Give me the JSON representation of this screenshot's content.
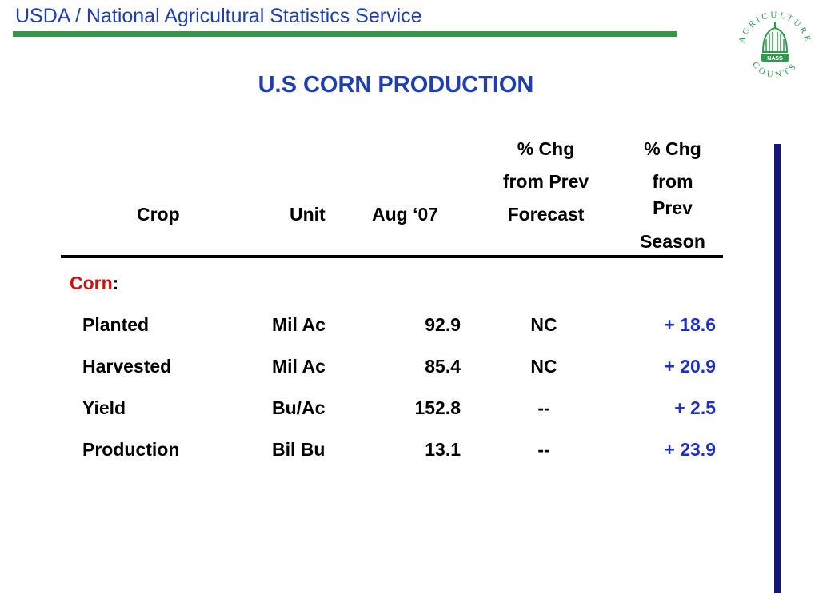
{
  "header": {
    "agency": "USDA / National Agricultural Statistics Service",
    "seal_text_top": "AGRICULTURE",
    "seal_text_bottom": "COUNTS",
    "seal_badge": "NASS"
  },
  "title": "U.S CORN PRODUCTION",
  "table": {
    "columns": {
      "crop": "Crop",
      "unit": "Unit",
      "aug07": "Aug ‘07",
      "chg_forecast": [
        "% Chg",
        "from Prev",
        "Forecast"
      ],
      "chg_season": [
        "% Chg",
        "from",
        "Prev",
        "Season"
      ]
    },
    "group": {
      "label": "Corn",
      "colon": ":"
    },
    "rows": [
      {
        "crop": "Planted",
        "unit": "Mil Ac",
        "aug07": "92.9",
        "chg_forecast": "NC",
        "chg_season": "+ 18.6"
      },
      {
        "crop": "Harvested",
        "unit": "Mil Ac",
        "aug07": "85.4",
        "chg_forecast": "NC",
        "chg_season": "+ 20.9"
      },
      {
        "crop": "Yield",
        "unit": "Bu/Ac",
        "aug07": "152.8",
        "chg_forecast": "--",
        "chg_season": "+ 2.5"
      },
      {
        "crop": "Production",
        "unit": "Bil Bu",
        "aug07": "13.1",
        "chg_forecast": "--",
        "chg_season": "+ 23.9"
      }
    ]
  },
  "colors": {
    "title_blue": "#1f3fb0",
    "rule_green": "#2f9a4a",
    "side_bar_navy": "#15167a",
    "positive_blue": "#1f2fc8",
    "corn_red": "#d01010"
  }
}
